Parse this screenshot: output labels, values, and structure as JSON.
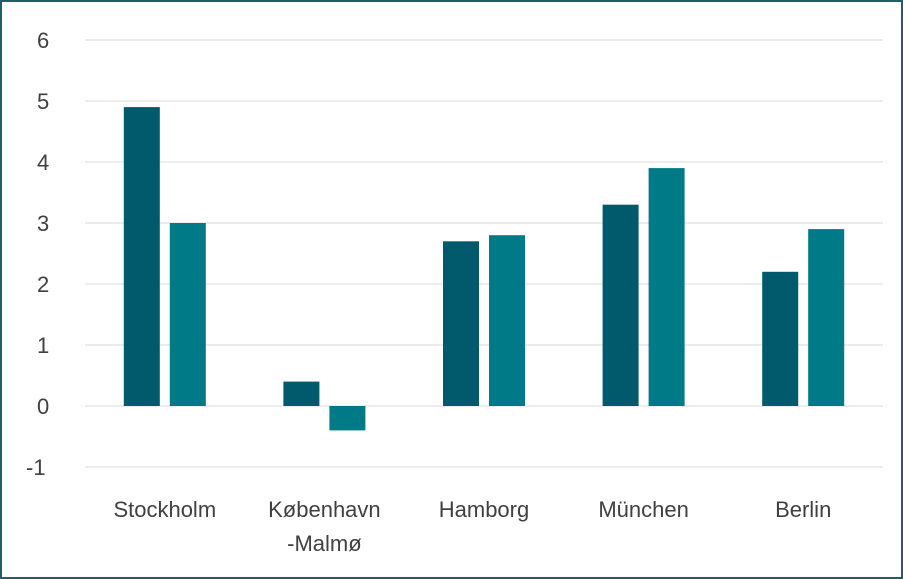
{
  "chart_data": {
    "type": "bar",
    "title": "",
    "xlabel": "",
    "ylabel": "",
    "categories": [
      "Stockholm",
      "København\n-Malmø",
      "Hamborg",
      "München",
      "Berlin"
    ],
    "series": [
      {
        "values": [
          4.9,
          0.4,
          2.7,
          3.3,
          2.2
        ]
      },
      {
        "values": [
          3.0,
          -0.4,
          2.8,
          3.9,
          2.9
        ]
      }
    ],
    "ylim": [
      -1,
      6
    ],
    "yticks": [
      "-1",
      "0",
      "1",
      "2",
      "3",
      "4",
      "5",
      "6"
    ],
    "grid": true,
    "legend": "none",
    "colors": [
      "#005a6b",
      "#007a87"
    ]
  }
}
